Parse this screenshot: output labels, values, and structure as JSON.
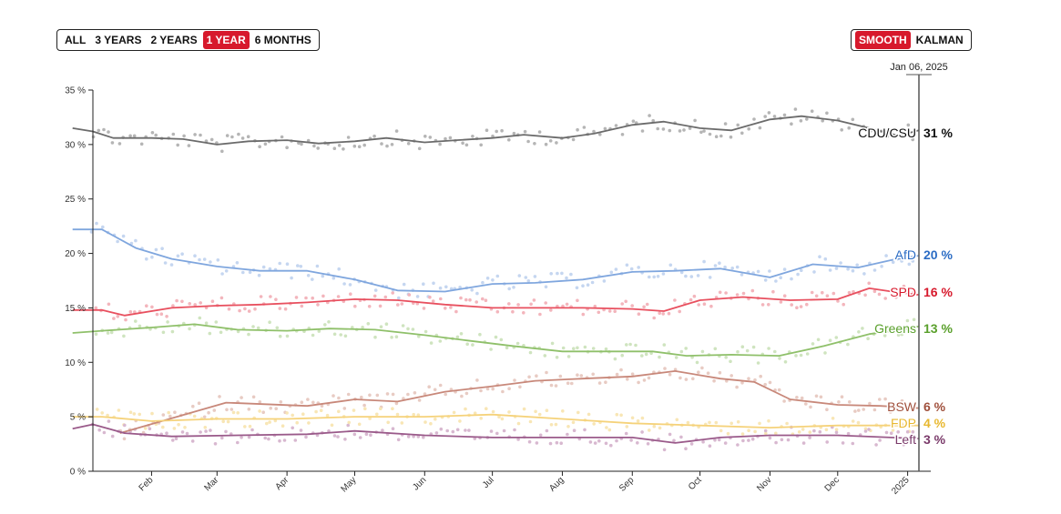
{
  "range_buttons": [
    {
      "label": "ALL",
      "active": false
    },
    {
      "label": "3 YEARS",
      "active": false
    },
    {
      "label": "2 YEARS",
      "active": false
    },
    {
      "label": "1 YEAR",
      "active": true
    },
    {
      "label": "6 MONTHS",
      "active": false
    }
  ],
  "mode_buttons": [
    {
      "label": "SMOOTH",
      "active": true
    },
    {
      "label": "KALMAN",
      "active": false
    }
  ],
  "colors": {
    "accent": "#d7192c",
    "axis": "#222222",
    "cursor": "#555555"
  },
  "chart_data": {
    "type": "line",
    "title": "",
    "xlabel": "",
    "ylabel": "",
    "cursor_label": "Jan 06, 2025",
    "x_range": [
      "2024-01-06",
      "2025-01-06"
    ],
    "x_ticks": [
      {
        "date": "2024-02-01",
        "label": "Feb"
      },
      {
        "date": "2024-03-01",
        "label": "Mar"
      },
      {
        "date": "2024-04-01",
        "label": "Apr"
      },
      {
        "date": "2024-05-01",
        "label": "May"
      },
      {
        "date": "2024-06-01",
        "label": "Jun"
      },
      {
        "date": "2024-07-01",
        "label": "Jul"
      },
      {
        "date": "2024-08-01",
        "label": "Aug"
      },
      {
        "date": "2024-09-01",
        "label": "Sep"
      },
      {
        "date": "2024-10-01",
        "label": "Oct"
      },
      {
        "date": "2024-11-01",
        "label": "Nov"
      },
      {
        "date": "2024-12-01",
        "label": "Dec"
      },
      {
        "date": "2025-01-01",
        "label": "2025"
      }
    ],
    "ylim": [
      0,
      35
    ],
    "y_ticks": [
      {
        "value": 0,
        "label": "0 %"
      },
      {
        "value": 5,
        "label": "5 %"
      },
      {
        "value": 10,
        "label": "10 %"
      },
      {
        "value": 15,
        "label": "15 %"
      },
      {
        "value": 20,
        "label": "20 %"
      },
      {
        "value": 25,
        "label": "25 %"
      },
      {
        "value": 30,
        "label": "30 %"
      },
      {
        "value": 35,
        "label": "35 %"
      }
    ],
    "series": [
      {
        "name": "CDU/CSU",
        "value_label": "31 %",
        "color": "#6b6b6b",
        "label_color": "#111111",
        "dot_color": "#b5b5b5",
        "points": [
          [
            "2023-12-28",
            31.5
          ],
          [
            "2024-01-06",
            31.2
          ],
          [
            "2024-01-15",
            30.6
          ],
          [
            "2024-02-01",
            30.6
          ],
          [
            "2024-02-15",
            30.5
          ],
          [
            "2024-03-01",
            30.0
          ],
          [
            "2024-03-15",
            30.3
          ],
          [
            "2024-04-01",
            30.4
          ],
          [
            "2024-04-15",
            30.1
          ],
          [
            "2024-05-01",
            30.3
          ],
          [
            "2024-05-15",
            30.6
          ],
          [
            "2024-06-01",
            30.2
          ],
          [
            "2024-06-15",
            30.4
          ],
          [
            "2024-07-01",
            30.6
          ],
          [
            "2024-07-15",
            30.9
          ],
          [
            "2024-08-01",
            30.6
          ],
          [
            "2024-08-15",
            31.0
          ],
          [
            "2024-09-01",
            31.8
          ],
          [
            "2024-09-15",
            32.1
          ],
          [
            "2024-10-01",
            31.5
          ],
          [
            "2024-10-15",
            31.3
          ],
          [
            "2024-11-01",
            32.3
          ],
          [
            "2024-11-15",
            32.6
          ],
          [
            "2024-12-01",
            32.2
          ],
          [
            "2024-12-15",
            31.5
          ],
          [
            "2024-12-28",
            30.8
          ],
          [
            "2025-01-06",
            31.3
          ]
        ]
      },
      {
        "name": "AfD",
        "value_label": "20 %",
        "color": "#7fa6de",
        "label_color": "#2b6cc4",
        "dot_color": "#c5d6f0",
        "points": [
          [
            "2023-12-28",
            22.2
          ],
          [
            "2024-01-10",
            22.2
          ],
          [
            "2024-01-25",
            20.5
          ],
          [
            "2024-02-10",
            19.5
          ],
          [
            "2024-03-01",
            18.8
          ],
          [
            "2024-03-20",
            18.4
          ],
          [
            "2024-04-10",
            18.4
          ],
          [
            "2024-05-01",
            17.6
          ],
          [
            "2024-05-20",
            16.6
          ],
          [
            "2024-06-10",
            16.5
          ],
          [
            "2024-07-01",
            17.2
          ],
          [
            "2024-07-20",
            17.3
          ],
          [
            "2024-08-10",
            17.6
          ],
          [
            "2024-09-01",
            18.3
          ],
          [
            "2024-09-20",
            18.4
          ],
          [
            "2024-10-10",
            18.6
          ],
          [
            "2024-11-01",
            17.8
          ],
          [
            "2024-11-20",
            19.0
          ],
          [
            "2024-12-10",
            18.7
          ],
          [
            "2024-12-25",
            19.4
          ],
          [
            "2025-01-06",
            19.8
          ]
        ]
      },
      {
        "name": "SPD",
        "value_label": "16 %",
        "color": "#e8505f",
        "label_color": "#d7192c",
        "dot_color": "#f3b5bc",
        "points": [
          [
            "2023-12-28",
            14.8
          ],
          [
            "2024-01-10",
            14.8
          ],
          [
            "2024-01-20",
            14.3
          ],
          [
            "2024-02-10",
            15.0
          ],
          [
            "2024-03-01",
            15.2
          ],
          [
            "2024-03-20",
            15.3
          ],
          [
            "2024-04-10",
            15.5
          ],
          [
            "2024-05-01",
            15.8
          ],
          [
            "2024-05-20",
            15.7
          ],
          [
            "2024-06-10",
            15.3
          ],
          [
            "2024-07-01",
            15.0
          ],
          [
            "2024-07-20",
            15.0
          ],
          [
            "2024-08-10",
            15.0
          ],
          [
            "2024-09-01",
            14.9
          ],
          [
            "2024-09-15",
            14.7
          ],
          [
            "2024-10-01",
            15.7
          ],
          [
            "2024-10-20",
            16.0
          ],
          [
            "2024-11-10",
            15.7
          ],
          [
            "2024-12-01",
            15.8
          ],
          [
            "2024-12-15",
            16.8
          ],
          [
            "2024-12-25",
            16.5
          ],
          [
            "2025-01-06",
            16.2
          ]
        ]
      },
      {
        "name": "Greens",
        "value_label": "13 %",
        "color": "#8fc06a",
        "label_color": "#5aa02c",
        "dot_color": "#cfe4bf",
        "points": [
          [
            "2023-12-28",
            12.7
          ],
          [
            "2024-01-10",
            12.9
          ],
          [
            "2024-02-01",
            13.2
          ],
          [
            "2024-02-20",
            13.5
          ],
          [
            "2024-03-10",
            13.0
          ],
          [
            "2024-04-01",
            12.9
          ],
          [
            "2024-04-20",
            13.1
          ],
          [
            "2024-05-10",
            13.0
          ],
          [
            "2024-06-01",
            12.5
          ],
          [
            "2024-06-20",
            12.0
          ],
          [
            "2024-07-10",
            11.5
          ],
          [
            "2024-08-01",
            11.0
          ],
          [
            "2024-08-20",
            11.0
          ],
          [
            "2024-09-10",
            11.0
          ],
          [
            "2024-09-25",
            10.6
          ],
          [
            "2024-10-15",
            10.7
          ],
          [
            "2024-11-05",
            10.6
          ],
          [
            "2024-11-25",
            11.5
          ],
          [
            "2024-12-15",
            12.6
          ],
          [
            "2024-12-30",
            13.0
          ],
          [
            "2025-01-06",
            13.3
          ]
        ]
      },
      {
        "name": "BSW",
        "value_label": "6 %",
        "color": "#c8887a",
        "label_color": "#a0503c",
        "dot_color": "#e8cbc3",
        "points": [
          [
            "2024-01-18",
            3.5
          ],
          [
            "2024-03-05",
            6.3
          ],
          [
            "2024-04-10",
            6.0
          ],
          [
            "2024-05-01",
            6.6
          ],
          [
            "2024-05-20",
            6.4
          ],
          [
            "2024-06-10",
            7.3
          ],
          [
            "2024-07-01",
            7.8
          ],
          [
            "2024-07-20",
            8.3
          ],
          [
            "2024-08-10",
            8.5
          ],
          [
            "2024-09-01",
            8.7
          ],
          [
            "2024-09-20",
            9.2
          ],
          [
            "2024-10-10",
            8.5
          ],
          [
            "2024-10-25",
            8.2
          ],
          [
            "2024-11-10",
            6.6
          ],
          [
            "2024-12-01",
            6.1
          ],
          [
            "2024-12-20",
            6.0
          ],
          [
            "2025-01-06",
            5.8
          ]
        ]
      },
      {
        "name": "FDP",
        "value_label": "4 %",
        "color": "#f5d27a",
        "label_color": "#e8b830",
        "dot_color": "#f8e6b5",
        "points": [
          [
            "2023-12-28",
            5.0
          ],
          [
            "2024-01-10",
            5.0
          ],
          [
            "2024-02-01",
            4.6
          ],
          [
            "2024-03-01",
            4.8
          ],
          [
            "2024-04-01",
            4.8
          ],
          [
            "2024-05-01",
            5.0
          ],
          [
            "2024-06-01",
            5.0
          ],
          [
            "2024-07-01",
            5.2
          ],
          [
            "2024-08-01",
            4.8
          ],
          [
            "2024-09-01",
            4.4
          ],
          [
            "2024-10-01",
            4.2
          ],
          [
            "2024-11-01",
            4.0
          ],
          [
            "2024-12-01",
            4.2
          ],
          [
            "2025-01-06",
            4.2
          ]
        ]
      },
      {
        "name": "Left",
        "value_label": "3 %",
        "color": "#9a5a8a",
        "label_color": "#7a3a6a",
        "dot_color": "#d8b8d0",
        "points": [
          [
            "2023-12-28",
            3.9
          ],
          [
            "2024-01-06",
            4.3
          ],
          [
            "2024-01-20",
            3.5
          ],
          [
            "2024-02-10",
            3.2
          ],
          [
            "2024-03-10",
            3.3
          ],
          [
            "2024-04-10",
            3.4
          ],
          [
            "2024-05-01",
            3.7
          ],
          [
            "2024-06-01",
            3.3
          ],
          [
            "2024-07-01",
            3.1
          ],
          [
            "2024-08-01",
            3.1
          ],
          [
            "2024-09-01",
            3.1
          ],
          [
            "2024-09-20",
            2.6
          ],
          [
            "2024-10-10",
            3.1
          ],
          [
            "2024-11-01",
            3.3
          ],
          [
            "2024-12-01",
            3.3
          ],
          [
            "2025-01-06",
            3.0
          ]
        ]
      }
    ]
  }
}
